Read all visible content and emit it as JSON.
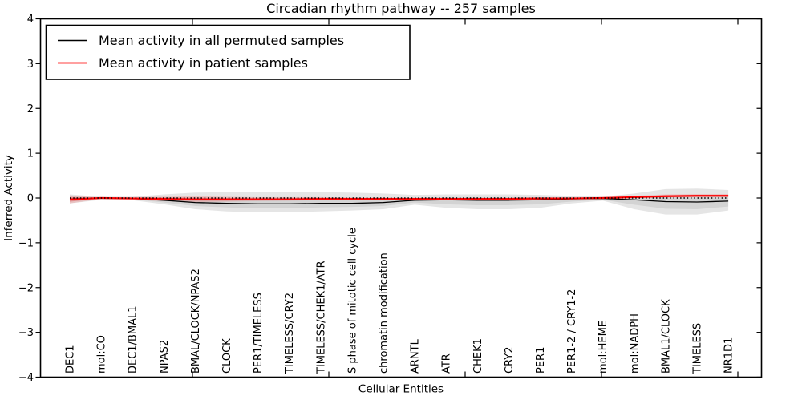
{
  "chart_data": {
    "type": "line",
    "title": "Circadian rhythm pathway -- 257 samples",
    "xlabel": "Cellular Entities",
    "ylabel": "Inferred Activity",
    "ylim": [
      -4,
      4
    ],
    "grid": false,
    "legend_position": "upper left",
    "yticks": [
      {
        "v": 4,
        "label": "4"
      },
      {
        "v": 3,
        "label": "3"
      },
      {
        "v": 2,
        "label": "2"
      },
      {
        "v": 1,
        "label": "1"
      },
      {
        "v": 0,
        "label": "0"
      },
      {
        "v": -1,
        "label": "−1"
      },
      {
        "v": -2,
        "label": "−2"
      },
      {
        "v": -3,
        "label": "−3"
      },
      {
        "v": -4,
        "label": "−4"
      }
    ],
    "categories": [
      "DEC1",
      "mol:CO",
      "DEC1/BMAL1",
      "NPAS2",
      "BMAL/CLOCK/NPAS2",
      "CLOCK",
      "PER1/TIMELESS",
      "TIMELESS/CRY2",
      "TIMELESS/CHEK1/ATR",
      "S phase of mitotic cell cycle",
      "chromatin modification",
      "ARNTL",
      "ATR",
      "CHEK1",
      "CRY2",
      "PER1",
      "PER1-2 / CRY1-2",
      "mol:HEME",
      "mol:NADPH",
      "BMAL1/CLOCK",
      "TIMELESS",
      "NR1D1"
    ],
    "legend": [
      {
        "label": "Mean activity in all permuted samples",
        "color": "#000000"
      },
      {
        "label": "Mean activity in patient samples",
        "color": "#ff0000"
      }
    ],
    "zero_line": {
      "y": 0,
      "style": "dotted",
      "color": "#000000"
    },
    "series": [
      {
        "name": "Mean activity in all permuted samples",
        "color": "#000000",
        "width": 1.3,
        "values": [
          -0.02,
          0.0,
          -0.01,
          -0.05,
          -0.1,
          -0.12,
          -0.13,
          -0.13,
          -0.12,
          -0.12,
          -0.1,
          -0.05,
          -0.04,
          -0.05,
          -0.05,
          -0.04,
          -0.02,
          -0.01,
          -0.04,
          -0.08,
          -0.09,
          -0.07
        ]
      },
      {
        "name": "Mean activity in patient samples",
        "color": "#ff0000",
        "width": 2.2,
        "values": [
          -0.03,
          0.0,
          -0.01,
          -0.02,
          -0.03,
          -0.03,
          -0.03,
          -0.03,
          -0.02,
          -0.02,
          -0.02,
          -0.02,
          -0.02,
          -0.02,
          -0.02,
          -0.01,
          -0.01,
          0.0,
          0.02,
          0.04,
          0.05,
          0.05
        ]
      }
    ],
    "bands": [
      {
        "name": "permuted-range-outer",
        "color": "rgba(0,0,0,0.10)",
        "hi": [
          0.08,
          0.03,
          0.03,
          0.08,
          0.12,
          0.13,
          0.14,
          0.14,
          0.13,
          0.12,
          0.1,
          0.07,
          0.08,
          0.08,
          0.08,
          0.07,
          0.05,
          0.03,
          0.1,
          0.2,
          0.21,
          0.18
        ],
        "lo": [
          -0.12,
          -0.04,
          -0.05,
          -0.14,
          -0.25,
          -0.3,
          -0.32,
          -0.32,
          -0.3,
          -0.28,
          -0.25,
          -0.15,
          -0.22,
          -0.25,
          -0.25,
          -0.22,
          -0.12,
          -0.06,
          -0.25,
          -0.37,
          -0.37,
          -0.28
        ]
      },
      {
        "name": "permuted-range-inner",
        "color": "rgba(0,0,0,0.08)",
        "hi": [
          0.03,
          0.01,
          0.01,
          0.02,
          0.01,
          0.01,
          0.01,
          0.01,
          0.01,
          0.01,
          0.0,
          0.01,
          0.02,
          0.02,
          0.02,
          0.02,
          0.01,
          0.01,
          0.03,
          0.06,
          0.07,
          0.06
        ],
        "lo": [
          -0.08,
          -0.02,
          -0.03,
          -0.1,
          -0.18,
          -0.21,
          -0.23,
          -0.23,
          -0.21,
          -0.2,
          -0.18,
          -0.1,
          -0.14,
          -0.16,
          -0.16,
          -0.14,
          -0.08,
          -0.04,
          -0.15,
          -0.24,
          -0.25,
          -0.19
        ]
      },
      {
        "name": "patient-range-outer",
        "color": "rgba(255,0,0,0.15)",
        "hi": [
          0.06,
          0.01,
          0.02,
          0.03,
          0.04,
          0.03,
          0.02,
          0.02,
          0.02,
          0.01,
          0.01,
          0.0,
          0.0,
          0.0,
          0.0,
          0.01,
          0.01,
          0.02,
          0.05,
          0.08,
          0.09,
          0.09
        ],
        "lo": [
          -0.12,
          -0.02,
          -0.04,
          -0.07,
          -0.09,
          -0.08,
          -0.07,
          -0.06,
          -0.05,
          -0.04,
          -0.04,
          -0.03,
          -0.03,
          -0.03,
          -0.03,
          -0.03,
          -0.02,
          -0.01,
          0.0,
          0.01,
          0.02,
          0.02
        ]
      },
      {
        "name": "patient-range-inner",
        "color": "rgba(255,0,0,0.22)",
        "hi": [
          0.02,
          0.0,
          0.01,
          0.01,
          0.01,
          0.0,
          0.0,
          0.0,
          0.0,
          0.0,
          0.0,
          -0.01,
          -0.01,
          -0.01,
          -0.01,
          0.0,
          0.0,
          0.01,
          0.03,
          0.06,
          0.07,
          0.07
        ],
        "lo": [
          -0.08,
          -0.01,
          -0.02,
          -0.05,
          -0.06,
          -0.06,
          -0.05,
          -0.05,
          -0.04,
          -0.03,
          -0.03,
          -0.03,
          -0.03,
          -0.03,
          -0.03,
          -0.02,
          -0.02,
          -0.01,
          0.01,
          0.02,
          0.03,
          0.03
        ]
      }
    ]
  }
}
